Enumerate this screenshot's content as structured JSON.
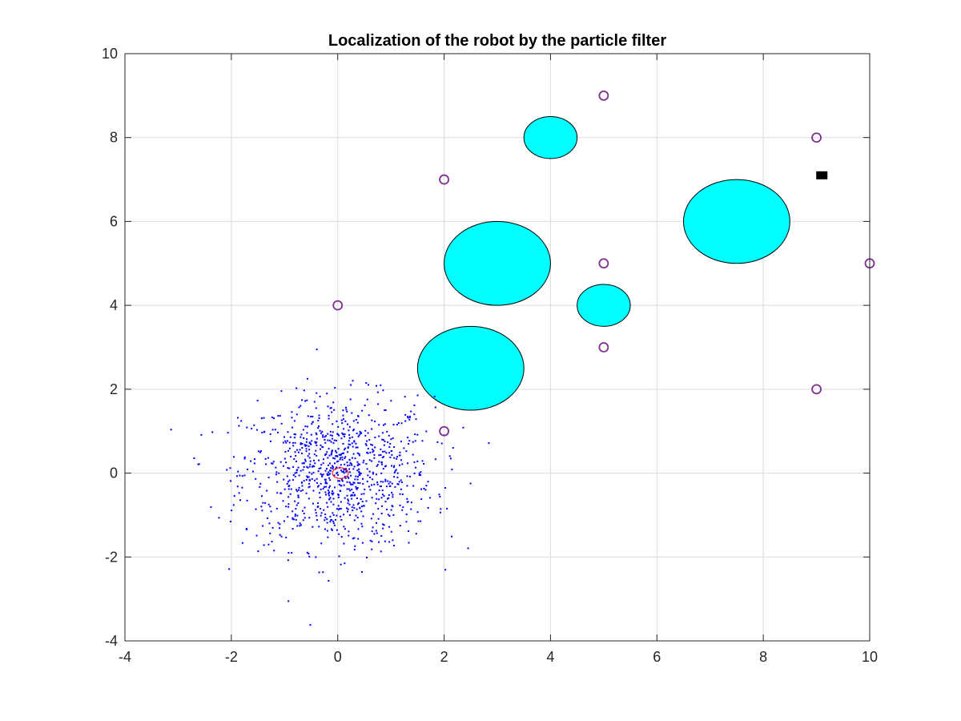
{
  "chart_data": {
    "type": "scatter",
    "title": "Localization of the robot by the particle filter",
    "xlabel": "",
    "ylabel": "",
    "xlim": [
      -4,
      10
    ],
    "ylim": [
      -4,
      10
    ],
    "xticks": [
      "-4",
      "-2",
      "0",
      "2",
      "4",
      "6",
      "8",
      "10"
    ],
    "yticks": [
      "-4",
      "-2",
      "0",
      "2",
      "4",
      "6",
      "8",
      "10"
    ],
    "grid": true,
    "obstacles": [
      {
        "cx": 4.0,
        "cy": 8.0,
        "rx": 0.5,
        "ry": 0.5
      },
      {
        "cx": 3.0,
        "cy": 5.0,
        "rx": 1.0,
        "ry": 1.0
      },
      {
        "cx": 2.5,
        "cy": 2.5,
        "rx": 1.0,
        "ry": 1.0
      },
      {
        "cx": 5.0,
        "cy": 4.0,
        "rx": 0.5,
        "ry": 0.5
      },
      {
        "cx": 7.5,
        "cy": 6.0,
        "rx": 1.0,
        "ry": 1.0
      }
    ],
    "landmarks": [
      [
        0,
        4
      ],
      [
        2,
        7
      ],
      [
        2,
        1
      ],
      [
        5,
        9
      ],
      [
        5,
        5
      ],
      [
        5,
        3
      ],
      [
        9,
        8
      ],
      [
        9,
        2
      ],
      [
        10,
        5
      ]
    ],
    "goal": {
      "x": 9.1,
      "y": 7.1
    },
    "robot_estimate": {
      "x": 0.05,
      "y": 0.0,
      "rx": 0.15,
      "ry": 0.15
    },
    "particles": {
      "count": 1000,
      "center": [
        0,
        0
      ],
      "std": [
        0.9,
        0.9
      ]
    },
    "colors": {
      "obstacle_fill": "#00ffff",
      "obstacle_edge": "#000000",
      "landmark": "#7e2f8e",
      "particle": "#0000ff",
      "robot_estimate": "#ff0000",
      "goal": "#000000"
    }
  }
}
